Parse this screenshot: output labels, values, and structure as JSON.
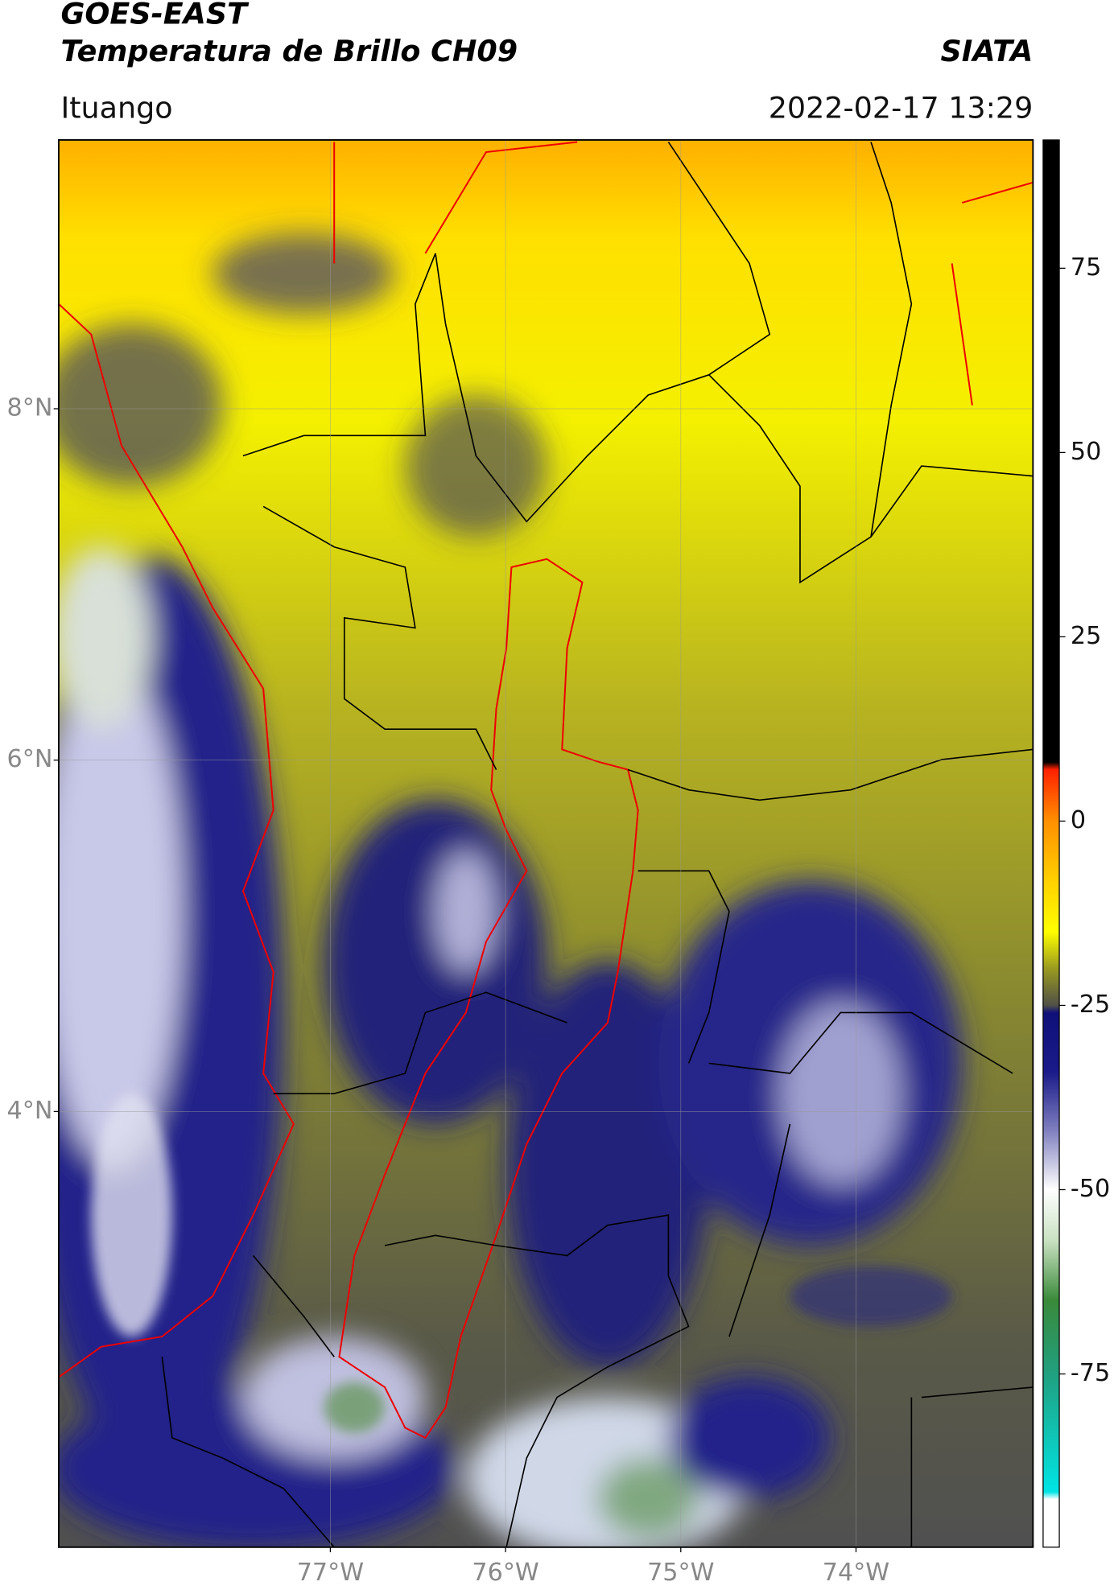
{
  "header": {
    "title": "GOES-EAST",
    "subtitle": "Temperatura de Brillo CH09",
    "source": "SIATA",
    "location": "Ituango",
    "datetime": "2022-02-17 13:29"
  },
  "map": {
    "xlim": [
      -78.55,
      -72.99
    ],
    "ylim": [
      1.52,
      9.53
    ],
    "xticks": [
      {
        "value": -77,
        "label": "77°W"
      },
      {
        "value": -76,
        "label": "76°W"
      },
      {
        "value": -75,
        "label": "75°W"
      },
      {
        "value": -74,
        "label": "74°W"
      }
    ],
    "yticks": [
      {
        "value": 4,
        "label": "4°N"
      },
      {
        "value": 6,
        "label": "6°N"
      },
      {
        "value": 8,
        "label": "8°N"
      }
    ],
    "grid": true
  },
  "colorbar": {
    "lim": [
      -98.5,
      92.4
    ],
    "ticks": [
      -75,
      -50,
      -25,
      0,
      25,
      50,
      75
    ],
    "colors": [
      {
        "value": -98.5,
        "color": "#ffffff"
      },
      {
        "value": -92,
        "color": "#ffffff"
      },
      {
        "value": -91,
        "color": "#00e5e5"
      },
      {
        "value": -75,
        "color": "#20a080"
      },
      {
        "value": -65,
        "color": "#3a8a3a"
      },
      {
        "value": -57,
        "color": "#c8e0c0"
      },
      {
        "value": -50,
        "color": "#ffffff"
      },
      {
        "value": -42,
        "color": "#8080c0"
      },
      {
        "value": -34,
        "color": "#1a1a8a"
      },
      {
        "value": -26,
        "color": "#10107a"
      },
      {
        "value": -25,
        "color": "#505048"
      },
      {
        "value": -20,
        "color": "#9a9a20"
      },
      {
        "value": -15,
        "color": "#ffff00"
      },
      {
        "value": -8,
        "color": "#ffd000"
      },
      {
        "value": 0,
        "color": "#ff9000"
      },
      {
        "value": 7,
        "color": "#ff2000"
      },
      {
        "value": 8,
        "color": "#000000"
      },
      {
        "value": 92.4,
        "color": "#000000"
      }
    ]
  }
}
